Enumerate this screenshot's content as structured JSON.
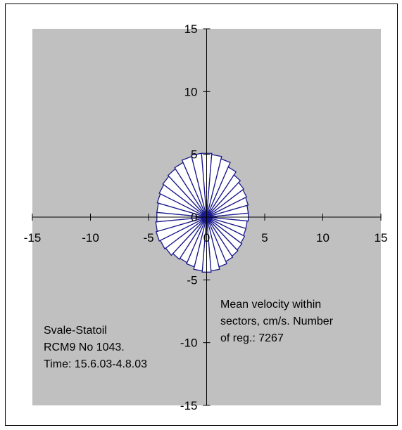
{
  "colors": {
    "plot_background": "#c0c0c0",
    "bar_fill": "#ffffff",
    "bar_stroke": "#1a1a8c",
    "axis": "#000000",
    "frame": "#000000"
  },
  "chart_data": {
    "type": "polar-bar",
    "title": "",
    "xlabel": "",
    "ylabel": "",
    "xlim": [
      -15,
      15
    ],
    "ylim": [
      -15,
      15
    ],
    "grid": false,
    "x_ticks": [
      "-15",
      "-10",
      "-5",
      "0",
      "5",
      "10",
      "15"
    ],
    "y_ticks": [
      "-15",
      "-10",
      "-5",
      "0",
      "5",
      "10",
      "15"
    ],
    "sector_count": 36,
    "sector_width_deg": 10,
    "direction_convention": "degrees clockwise from north (up)",
    "sectors": [
      {
        "direction_deg": 0,
        "mean_velocity": 5.1
      },
      {
        "direction_deg": 10,
        "mean_velocity": 5.0
      },
      {
        "direction_deg": 20,
        "mean_velocity": 4.8
      },
      {
        "direction_deg": 30,
        "mean_velocity": 4.4
      },
      {
        "direction_deg": 40,
        "mean_velocity": 4.1
      },
      {
        "direction_deg": 50,
        "mean_velocity": 3.9
      },
      {
        "direction_deg": 60,
        "mean_velocity": 3.8
      },
      {
        "direction_deg": 70,
        "mean_velocity": 3.7
      },
      {
        "direction_deg": 80,
        "mean_velocity": 3.6
      },
      {
        "direction_deg": 90,
        "mean_velocity": 3.6
      },
      {
        "direction_deg": 100,
        "mean_velocity": 3.5
      },
      {
        "direction_deg": 110,
        "mean_velocity": 3.5
      },
      {
        "direction_deg": 120,
        "mean_velocity": 3.6
      },
      {
        "direction_deg": 130,
        "mean_velocity": 3.7
      },
      {
        "direction_deg": 140,
        "mean_velocity": 3.8
      },
      {
        "direction_deg": 150,
        "mean_velocity": 3.9
      },
      {
        "direction_deg": 160,
        "mean_velocity": 4.1
      },
      {
        "direction_deg": 170,
        "mean_velocity": 4.3
      },
      {
        "direction_deg": 180,
        "mean_velocity": 4.4
      },
      {
        "direction_deg": 190,
        "mean_velocity": 4.3
      },
      {
        "direction_deg": 200,
        "mean_velocity": 4.1
      },
      {
        "direction_deg": 210,
        "mean_velocity": 4.0
      },
      {
        "direction_deg": 220,
        "mean_velocity": 4.1
      },
      {
        "direction_deg": 230,
        "mean_velocity": 4.3
      },
      {
        "direction_deg": 240,
        "mean_velocity": 4.4
      },
      {
        "direction_deg": 250,
        "mean_velocity": 4.5
      },
      {
        "direction_deg": 260,
        "mean_velocity": 4.4
      },
      {
        "direction_deg": 270,
        "mean_velocity": 4.3
      },
      {
        "direction_deg": 280,
        "mean_velocity": 4.3
      },
      {
        "direction_deg": 290,
        "mean_velocity": 4.4
      },
      {
        "direction_deg": 300,
        "mean_velocity": 4.5
      },
      {
        "direction_deg": 310,
        "mean_velocity": 4.6
      },
      {
        "direction_deg": 320,
        "mean_velocity": 4.7
      },
      {
        "direction_deg": 330,
        "mean_velocity": 4.8
      },
      {
        "direction_deg": 340,
        "mean_velocity": 5.0
      },
      {
        "direction_deg": 350,
        "mean_velocity": 5.1
      }
    ],
    "annotations": {
      "velocity_note": [
        "Mean velocity within",
        "sectors, cm/s.  Number",
        "of reg.:  7267"
      ],
      "station_info": [
        "Svale-Statoil",
        "RCM9 No 1043.",
        "Time: 15.6.03-4.8.03"
      ]
    }
  }
}
